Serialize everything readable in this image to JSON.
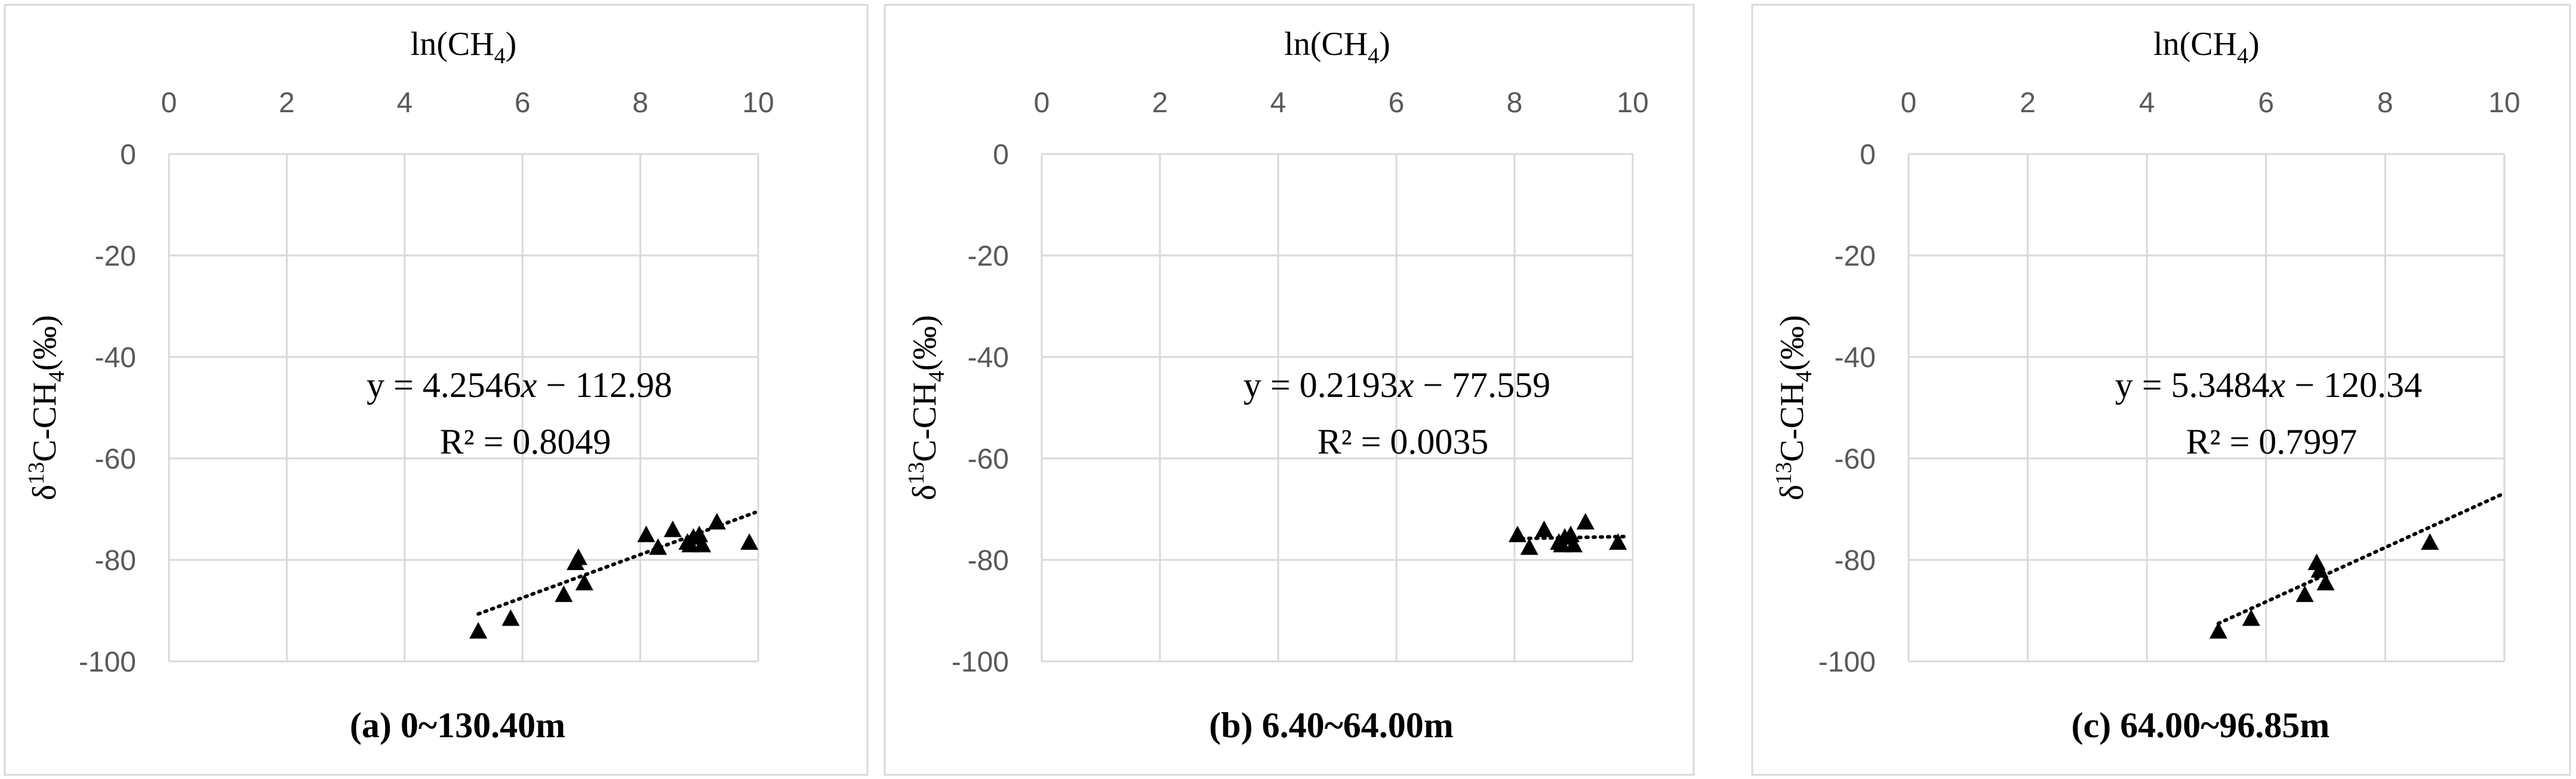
{
  "chart_data": [
    {
      "type": "scatter",
      "xlabel": "ln(CH",
      "xlabel_sub": "4",
      "xlabel_end": ")",
      "ylabel_pre": "δ",
      "ylabel_sup": "13",
      "ylabel_mid": "C-CH",
      "ylabel_sub": "4",
      "ylabel_end": "(‰)",
      "xlim": [
        0,
        10
      ],
      "ylim": [
        -100,
        0
      ],
      "x_ticks": [
        "0",
        "2",
        "4",
        "6",
        "8",
        "10"
      ],
      "y_ticks": [
        "0",
        "-20",
        "-40",
        "-60",
        "-80",
        "-100"
      ],
      "grid": true,
      "marker": "triangle",
      "points": [
        [
          5.25,
          -94.0
        ],
        [
          5.8,
          -91.5
        ],
        [
          6.7,
          -86.8
        ],
        [
          6.9,
          -80.5
        ],
        [
          6.95,
          -79.5
        ],
        [
          7.05,
          -84.5
        ],
        [
          8.1,
          -75.0
        ],
        [
          8.3,
          -77.5
        ],
        [
          8.55,
          -74.0
        ],
        [
          8.8,
          -76.5
        ],
        [
          8.85,
          -77.0
        ],
        [
          8.9,
          -75.5
        ],
        [
          9.0,
          -75.0
        ],
        [
          9.05,
          -77.0
        ],
        [
          9.3,
          -72.5
        ],
        [
          9.85,
          -76.5
        ]
      ],
      "trendline": {
        "slope": 4.2546,
        "intercept": -112.98,
        "x_range": [
          5.25,
          9.95
        ]
      },
      "equation": "y = 4.2546x − 112.98",
      "r_squared": "R² = 0.8049",
      "caption": "(a) 0~130.40m"
    },
    {
      "type": "scatter",
      "xlabel": "ln(CH",
      "xlabel_sub": "4",
      "xlabel_end": ")",
      "ylabel_pre": "δ",
      "ylabel_sup": "13",
      "ylabel_mid": "C-CH",
      "ylabel_sub": "4",
      "ylabel_end": "(‰)",
      "xlim": [
        0,
        10
      ],
      "ylim": [
        -100,
        0
      ],
      "x_ticks": [
        "0",
        "2",
        "4",
        "6",
        "8",
        "10"
      ],
      "y_ticks": [
        "0",
        "-20",
        "-40",
        "-60",
        "-80",
        "-100"
      ],
      "grid": true,
      "marker": "triangle",
      "points": [
        [
          8.05,
          -75.0
        ],
        [
          8.25,
          -77.5
        ],
        [
          8.5,
          -74.0
        ],
        [
          8.75,
          -76.5
        ],
        [
          8.8,
          -77.0
        ],
        [
          8.85,
          -75.5
        ],
        [
          8.95,
          -75.0
        ],
        [
          9.0,
          -77.0
        ],
        [
          9.2,
          -72.5
        ],
        [
          9.75,
          -76.5
        ]
      ],
      "trendline": {
        "slope": 0.2193,
        "intercept": -77.559,
        "x_range": [
          8.0,
          9.85
        ]
      },
      "equation": "y = 0.2193x − 77.559",
      "r_squared": "R² = 0.0035",
      "caption": "(b) 6.40~64.00m"
    },
    {
      "type": "scatter",
      "xlabel": "ln(CH",
      "xlabel_sub": "4",
      "xlabel_end": ")",
      "ylabel_pre": "δ",
      "ylabel_sup": "13",
      "ylabel_mid": "C-CH",
      "ylabel_sub": "4",
      "ylabel_end": "(‰)",
      "xlim": [
        0,
        10
      ],
      "ylim": [
        -100,
        0
      ],
      "x_ticks": [
        "0",
        "2",
        "4",
        "6",
        "8",
        "10"
      ],
      "y_ticks": [
        "0",
        "-20",
        "-40",
        "-60",
        "-80",
        "-100"
      ],
      "grid": true,
      "marker": "triangle",
      "points": [
        [
          5.2,
          -94.0
        ],
        [
          5.75,
          -91.5
        ],
        [
          6.65,
          -86.8
        ],
        [
          6.85,
          -80.5
        ],
        [
          6.9,
          -82.0
        ],
        [
          7.0,
          -84.5
        ],
        [
          8.75,
          -76.5
        ]
      ],
      "trendline": {
        "slope": 5.3484,
        "intercept": -120.34,
        "x_range": [
          5.2,
          10.0
        ]
      },
      "equation": "y = 5.3484x − 120.34",
      "r_squared": "R² = 0.7997",
      "caption": "(c) 64.00~96.85m"
    }
  ]
}
